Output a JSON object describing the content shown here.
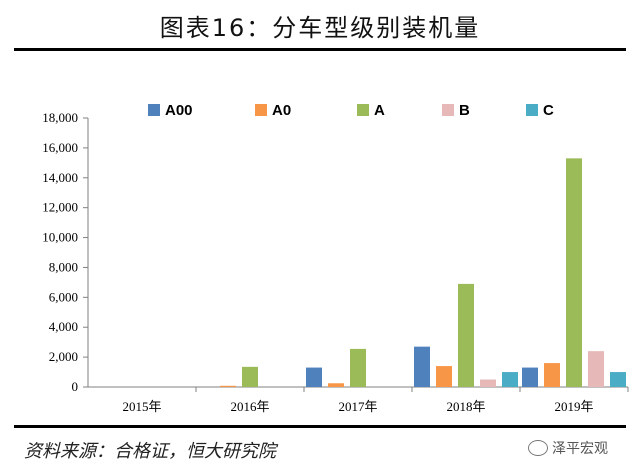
{
  "title": "图表16：分车型级别装机量",
  "source": "资料来源：合格证，恒大研究院",
  "watermark": "泽平宏观",
  "chart_data": {
    "type": "bar",
    "categories": [
      "2015年",
      "2016年",
      "2017年",
      "2018年",
      "2019年"
    ],
    "series": [
      {
        "name": "A00",
        "color": "#4F81BD",
        "values": [
          0,
          0,
          1300,
          2700,
          1300
        ]
      },
      {
        "name": "A0",
        "color": "#F79646",
        "values": [
          0,
          80,
          250,
          1400,
          1600
        ]
      },
      {
        "name": "A",
        "color": "#9BBB59",
        "values": [
          0,
          1350,
          2550,
          6900,
          15300
        ]
      },
      {
        "name": "B",
        "color": "#E6B9B8",
        "values": [
          0,
          0,
          0,
          500,
          2400
        ]
      },
      {
        "name": "C",
        "color": "#4BACC6",
        "values": [
          0,
          0,
          0,
          1000,
          1000
        ]
      }
    ],
    "yticks": [
      "0",
      "2,000",
      "4,000",
      "6,000",
      "8,000",
      "10,000",
      "12,000",
      "14,000",
      "16,000",
      "18,000"
    ],
    "ylim": [
      0,
      18000
    ],
    "legend": "top",
    "grid": false
  }
}
